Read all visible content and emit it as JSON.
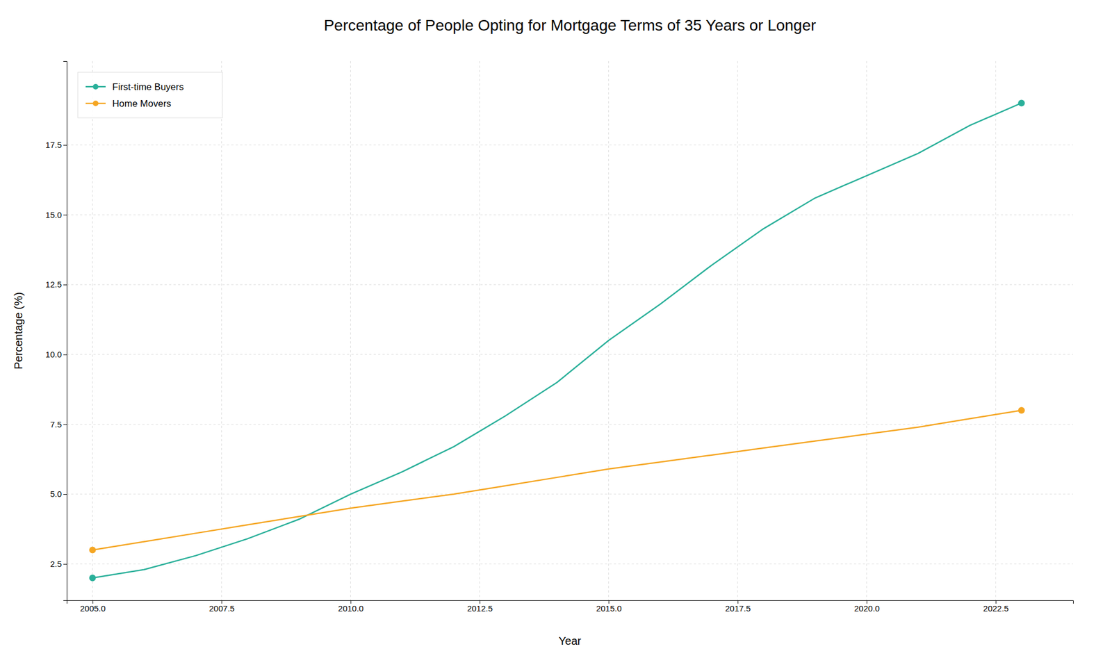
{
  "chart_data": {
    "type": "line",
    "title": "Percentage of People Opting for Mortgage Terms of 35 Years or Longer",
    "xlabel": "Year",
    "ylabel": "Percentage (%)",
    "x": [
      2005,
      2006,
      2007,
      2008,
      2009,
      2010,
      2011,
      2012,
      2013,
      2014,
      2015,
      2016,
      2017,
      2018,
      2019,
      2020,
      2021,
      2022,
      2023
    ],
    "series": [
      {
        "name": "First-time Buyers",
        "color": "#2ab09a",
        "marker": "circle",
        "values": [
          2.0,
          2.3,
          2.8,
          3.4,
          4.1,
          5.0,
          5.8,
          6.7,
          7.8,
          9.0,
          10.5,
          11.8,
          13.2,
          14.5,
          15.6,
          16.4,
          17.2,
          18.2,
          19.0
        ]
      },
      {
        "name": "Home Movers",
        "color": "#f5a623",
        "marker": "circle",
        "values": [
          3.0,
          3.3,
          3.6,
          3.9,
          4.2,
          4.5,
          4.75,
          5.0,
          5.3,
          5.6,
          5.9,
          6.15,
          6.4,
          6.65,
          6.9,
          7.15,
          7.4,
          7.7,
          8.0
        ]
      }
    ],
    "xlim": [
      2004.5,
      2024.0
    ],
    "ylim": [
      1.2,
      20.5
    ],
    "xticks": [
      {
        "value": 2005,
        "label": "2005.0"
      },
      2007.5,
      {
        "value": 2010,
        "label": "2010.0"
      },
      2012.5,
      {
        "value": 2015,
        "label": "2015.0"
      },
      2017.5,
      {
        "value": 2020,
        "label": "2020.0"
      },
      2022.5
    ],
    "yticks": [
      2.5,
      {
        "value": 5,
        "label": "5.0"
      },
      7.5,
      {
        "value": 10,
        "label": "10.0"
      },
      12.5,
      {
        "value": 15,
        "label": "15.0"
      },
      17.5
    ],
    "grid": true,
    "legend": "top-left"
  }
}
